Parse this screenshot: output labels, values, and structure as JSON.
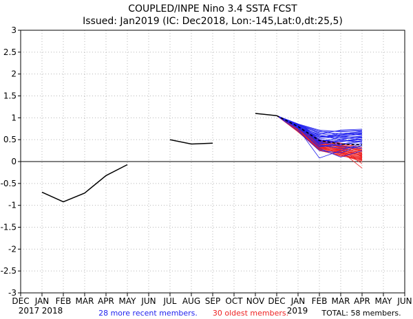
{
  "chart_data": {
    "type": "line",
    "title": "COUPLED/INPE Nino 3.4 SSTA FCST",
    "subtitle": "Issued: Jan2019 (IC: Dec2018, Lon:-145,Lat:0,dt:25,5)",
    "x_tick_labels": [
      "DEC",
      "JAN",
      "FEB",
      "MAR",
      "APR",
      "MAY",
      "JUN",
      "JUL",
      "AUG",
      "SEP",
      "OCT",
      "NOV",
      "DEC",
      "JAN",
      "FEB",
      "MAR",
      "APR",
      "MAY",
      "JUN"
    ],
    "y_tick_labels": [
      "3",
      "2.5",
      "2",
      "1.5",
      "1",
      "0.5",
      "0",
      "-0.5",
      "-1",
      "-1.5",
      "-2",
      "-2.5",
      "-3"
    ],
    "y_tick_values": [
      3,
      2.5,
      2,
      1.5,
      1,
      0.5,
      0,
      -0.5,
      -1,
      -1.5,
      -2,
      -2.5,
      -3
    ],
    "ylim": [
      -3,
      3
    ],
    "xlim": [
      0,
      18
    ],
    "grid": true,
    "year_labels": [
      "2017",
      "2018",
      "2019"
    ],
    "observed_segments": [
      {
        "x": [
          1,
          2,
          3,
          4,
          5
        ],
        "y": [
          -0.7,
          -0.92,
          -0.72,
          -0.32,
          -0.07
        ]
      },
      {
        "x": [
          7,
          8,
          9
        ],
        "y": [
          0.5,
          0.4,
          0.42
        ]
      },
      {
        "x": [
          11,
          12
        ],
        "y": [
          1.1,
          1.05
        ]
      }
    ],
    "ensemble_mean": {
      "x": [
        12,
        13,
        14,
        15,
        16
      ],
      "y": [
        1.05,
        0.8,
        0.48,
        0.4,
        0.38
      ]
    },
    "recent_members": {
      "name": "28 more recent members.",
      "color": "#2222ee",
      "count": 28,
      "start": 1.05,
      "points": [
        [
          0.84,
          0.5,
          0.45,
          0.55
        ],
        [
          0.82,
          0.55,
          0.6,
          0.7
        ],
        [
          0.78,
          0.4,
          0.5,
          0.58
        ],
        [
          0.8,
          0.62,
          0.72,
          0.74
        ],
        [
          0.86,
          0.58,
          0.55,
          0.5
        ],
        [
          0.76,
          0.35,
          0.4,
          0.48
        ],
        [
          0.83,
          0.66,
          0.64,
          0.68
        ],
        [
          0.79,
          0.45,
          0.35,
          0.3
        ],
        [
          0.81,
          0.52,
          0.58,
          0.62
        ],
        [
          0.85,
          0.7,
          0.6,
          0.65
        ],
        [
          0.77,
          0.3,
          0.1,
          0.25
        ],
        [
          0.7,
          0.25,
          0.2,
          0.38
        ],
        [
          0.75,
          0.08,
          0.25,
          0.42
        ],
        [
          0.84,
          0.6,
          0.5,
          0.45
        ],
        [
          0.8,
          0.48,
          0.52,
          0.56
        ],
        [
          0.82,
          0.42,
          0.45,
          0.52
        ],
        [
          0.78,
          0.55,
          0.65,
          0.6
        ],
        [
          0.85,
          0.64,
          0.58,
          0.54
        ],
        [
          0.81,
          0.38,
          0.3,
          0.35
        ],
        [
          0.79,
          0.46,
          0.48,
          0.44
        ],
        [
          0.83,
          0.56,
          0.62,
          0.66
        ],
        [
          0.8,
          0.5,
          0.4,
          0.4
        ],
        [
          0.86,
          0.72,
          0.68,
          0.7
        ],
        [
          0.77,
          0.34,
          0.38,
          0.46
        ],
        [
          0.82,
          0.6,
          0.55,
          0.58
        ],
        [
          0.8,
          0.44,
          0.56,
          0.64
        ],
        [
          0.84,
          0.68,
          0.7,
          0.72
        ],
        [
          0.78,
          0.4,
          0.46,
          0.5
        ]
      ]
    },
    "oldest_members": {
      "name": "30 oldest members.",
      "color": "#ee2222",
      "count": 30,
      "start": 1.05,
      "points": [
        [
          0.72,
          0.35,
          0.25,
          0.15
        ],
        [
          0.7,
          0.3,
          0.2,
          0.05
        ],
        [
          0.75,
          0.4,
          0.3,
          0.2
        ],
        [
          0.68,
          0.25,
          0.15,
          0.0
        ],
        [
          0.73,
          0.38,
          0.28,
          -0.05
        ],
        [
          0.76,
          0.45,
          0.35,
          0.25
        ],
        [
          0.71,
          0.32,
          0.22,
          0.1
        ],
        [
          0.74,
          0.42,
          0.32,
          0.18
        ],
        [
          0.69,
          0.28,
          0.18,
          0.02
        ],
        [
          0.77,
          0.48,
          0.4,
          0.3
        ],
        [
          0.7,
          0.33,
          0.26,
          0.12
        ],
        [
          0.72,
          0.36,
          0.24,
          -0.15
        ],
        [
          0.75,
          0.44,
          0.36,
          0.22
        ],
        [
          0.68,
          0.27,
          0.12,
          0.08
        ],
        [
          0.73,
          0.39,
          0.3,
          0.16
        ],
        [
          0.76,
          0.46,
          0.38,
          0.28
        ],
        [
          0.71,
          0.34,
          0.2,
          0.06
        ],
        [
          0.74,
          0.41,
          0.33,
          0.2
        ],
        [
          0.69,
          0.29,
          0.16,
          0.04
        ],
        [
          0.72,
          0.37,
          0.27,
          0.14
        ],
        [
          0.78,
          0.5,
          0.42,
          0.32
        ],
        [
          0.7,
          0.31,
          0.21,
          0.09
        ],
        [
          0.75,
          0.43,
          0.34,
          0.24
        ],
        [
          0.73,
          0.4,
          0.29,
          0.11
        ],
        [
          0.71,
          0.35,
          0.23,
          0.13
        ],
        [
          0.74,
          0.47,
          0.37,
          0.26
        ],
        [
          0.68,
          0.26,
          0.14,
          0.03
        ],
        [
          0.76,
          0.45,
          0.31,
          0.19
        ],
        [
          0.72,
          0.38,
          0.26,
          0.17
        ],
        [
          0.7,
          0.32,
          0.19,
          0.07
        ]
      ]
    },
    "total_text": "TOTAL: 58 members."
  }
}
